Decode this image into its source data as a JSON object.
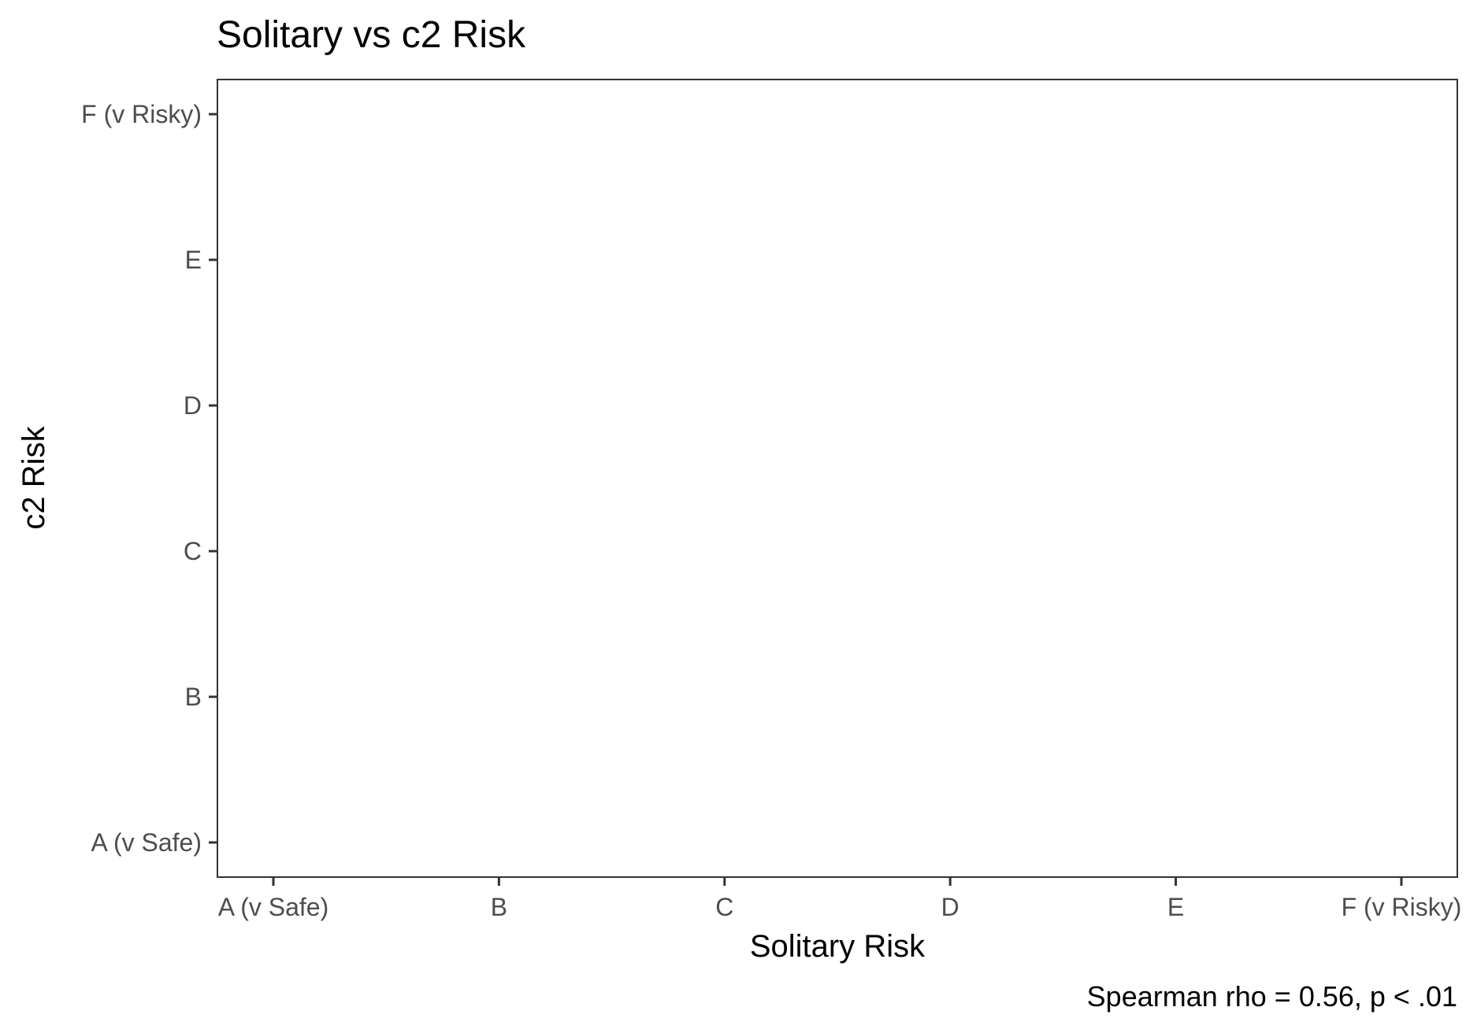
{
  "chart_data": {
    "type": "scatter",
    "title": "Solitary vs c2 Risk",
    "xlabel": "Solitary Risk",
    "ylabel": "c2 Risk",
    "x_categories": [
      "A (v Safe)",
      "B",
      "C",
      "D",
      "E",
      "F (v Risky)"
    ],
    "y_categories": [
      "A (v Safe)",
      "B",
      "C",
      "D",
      "E",
      "F (v Risky)"
    ],
    "points": [],
    "caption": "Spearman rho = 0.56, p < .01",
    "grid": false,
    "legend": "none"
  },
  "colors": {
    "axis": "#333333",
    "tick_text": "#4d4d4d",
    "text": "#000000",
    "panel_border": "#333333"
  }
}
